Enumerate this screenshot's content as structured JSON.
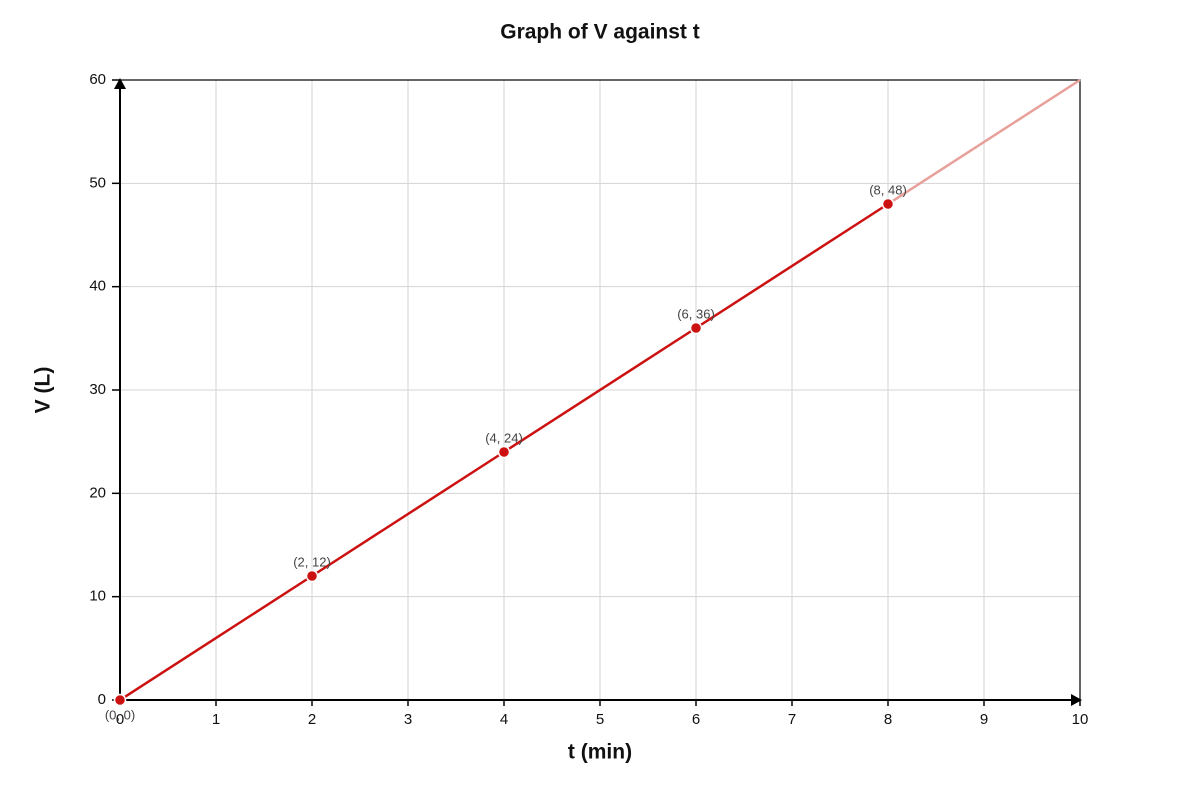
{
  "chart_data": {
    "type": "line",
    "title": "Graph of V against t",
    "x_label": "t (min)",
    "y_label": "V (L)",
    "series": [
      {
        "color": "#cc1111",
        "x": [
          0,
          2,
          4,
          6,
          8
        ],
        "values": [
          0,
          12,
          24,
          36,
          48
        ],
        "value_labels": [
          "(0, 0)",
          "(2, 12)",
          "(4, 24)",
          "(6, 36)",
          "(8, 48)"
        ],
        "markers": true
      },
      {
        "color": "#e8a09a",
        "x": [
          8,
          10
        ],
        "values": [
          48,
          60
        ],
        "markers": false
      }
    ],
    "xlim": [
      0,
      10
    ],
    "ylim": [
      0,
      60
    ],
    "xticks": [
      0,
      1,
      2,
      3,
      4,
      5,
      6,
      7,
      8,
      9,
      10
    ],
    "yticks": [
      0,
      10,
      20,
      30,
      40,
      50,
      60
    ],
    "grid": true
  }
}
